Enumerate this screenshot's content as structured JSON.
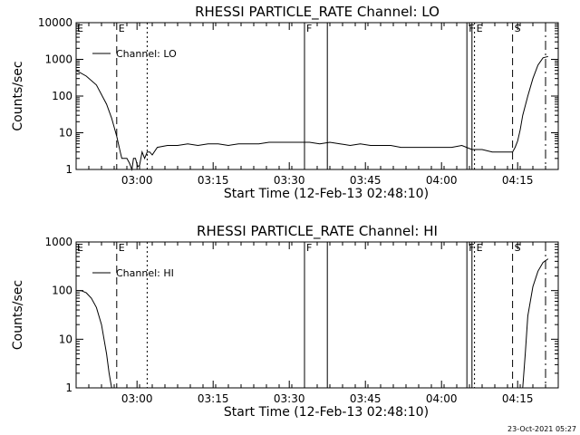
{
  "footer": "23-Oct-2021 05:27",
  "chart_data": [
    {
      "type": "line",
      "title": "RHESSI PARTICLE_RATE Channel: LO",
      "xlabel": "Start Time (12-Feb-13 02:48:10)",
      "ylabel": "Counts/sec",
      "yscale": "log",
      "ylim": [
        1,
        10000
      ],
      "xlim": [
        0,
        95
      ],
      "yticks": [
        {
          "v": 1,
          "label": "1"
        },
        {
          "v": 10,
          "label": "10"
        },
        {
          "v": 100,
          "label": "100"
        },
        {
          "v": 1000,
          "label": "1000"
        },
        {
          "v": 10000,
          "label": "10000"
        }
      ],
      "xticks": [
        {
          "t": 12,
          "label": "03:00"
        },
        {
          "t": 27,
          "label": "03:15"
        },
        {
          "t": 42,
          "label": "03:30"
        },
        {
          "t": 57,
          "label": "03:45"
        },
        {
          "t": 72,
          "label": "04:00"
        },
        {
          "t": 87,
          "label": "04:15"
        }
      ],
      "legend": "Channel: LO",
      "series": [
        {
          "name": "Channel: LO",
          "x": [
            0,
            2,
            4,
            6,
            7,
            8,
            8.7,
            9,
            9.3,
            10,
            10.5,
            11,
            11.3,
            11.7,
            12.1,
            12.5,
            13,
            13.5,
            14,
            14.5,
            15,
            16,
            18,
            20,
            22,
            24,
            26,
            28,
            30,
            32,
            34,
            36,
            38,
            40,
            42,
            44,
            46,
            48,
            50,
            52,
            54,
            56,
            58,
            60,
            62,
            64,
            66,
            68,
            70,
            72,
            74,
            76,
            78,
            80,
            82,
            84,
            85,
            86,
            86.5,
            87,
            87.5,
            88,
            89,
            90,
            91,
            92,
            93
          ],
          "y": [
            500,
            350,
            200,
            60,
            25,
            8,
            3,
            2,
            2,
            2,
            1.5,
            1,
            2,
            2,
            1.2,
            1.3,
            3,
            2,
            3,
            3,
            2.5,
            4,
            4.5,
            4.5,
            5,
            4.5,
            5,
            5,
            4.5,
            5,
            5,
            5,
            5.5,
            5.5,
            5.5,
            5.5,
            5.5,
            5,
            5.5,
            5,
            4.5,
            5,
            4.5,
            4.5,
            4.5,
            4,
            4,
            4,
            4,
            4,
            4,
            4.5,
            3.5,
            3.5,
            3,
            3,
            3,
            3,
            4,
            6,
            12,
            30,
            100,
            300,
            700,
            1100,
            1200
          ]
        }
      ],
      "markers": [
        {
          "t": 8,
          "style": "dashed",
          "label": "E"
        },
        {
          "t": 14,
          "style": "dotted",
          "label": ""
        },
        {
          "t": 45,
          "style": "solid",
          "label": "F"
        },
        {
          "t": 49.5,
          "style": "solid",
          "label": ""
        },
        {
          "t": 77,
          "style": "solid",
          "label": "F"
        },
        {
          "t": 78,
          "style": "solid",
          "label": ""
        },
        {
          "t": 78.5,
          "style": "dotted",
          "label": "E"
        },
        {
          "t": 86,
          "style": "dashed",
          "label": "S"
        },
        {
          "t": 92.5,
          "style": "dashdot",
          "label": ""
        }
      ],
      "corner_label": "E"
    },
    {
      "type": "line",
      "title": "RHESSI PARTICLE_RATE Channel: HI",
      "xlabel": "Start Time (12-Feb-13 02:48:10)",
      "ylabel": "Counts/sec",
      "yscale": "log",
      "ylim": [
        1,
        1000
      ],
      "xlim": [
        0,
        95
      ],
      "yticks": [
        {
          "v": 1,
          "label": "1"
        },
        {
          "v": 10,
          "label": "10"
        },
        {
          "v": 100,
          "label": "100"
        },
        {
          "v": 1000,
          "label": "1000"
        }
      ],
      "xticks": [
        {
          "t": 12,
          "label": "03:00"
        },
        {
          "t": 27,
          "label": "03:15"
        },
        {
          "t": 42,
          "label": "03:30"
        },
        {
          "t": 57,
          "label": "03:45"
        },
        {
          "t": 72,
          "label": "04:00"
        },
        {
          "t": 87,
          "label": "04:15"
        }
      ],
      "legend": "Channel: HI",
      "series": [
        {
          "name": "Channel: HI",
          "x": [
            0,
            1,
            2,
            3,
            4,
            5,
            6,
            6.5,
            7
          ],
          "y": [
            100,
            100,
            90,
            70,
            45,
            20,
            5,
            2,
            1
          ]
        },
        {
          "name": "Channel: HI",
          "x": [
            88,
            88.5,
            89,
            90,
            91,
            92,
            93
          ],
          "y": [
            1,
            5,
            30,
            120,
            250,
            380,
            450
          ]
        }
      ],
      "markers": [
        {
          "t": 8,
          "style": "dashed",
          "label": "E"
        },
        {
          "t": 14,
          "style": "dotted",
          "label": ""
        },
        {
          "t": 45,
          "style": "solid",
          "label": "F"
        },
        {
          "t": 49.5,
          "style": "solid",
          "label": ""
        },
        {
          "t": 77,
          "style": "solid",
          "label": "F"
        },
        {
          "t": 78,
          "style": "solid",
          "label": ""
        },
        {
          "t": 78.5,
          "style": "dotted",
          "label": "E"
        },
        {
          "t": 86,
          "style": "dashed",
          "label": "S"
        },
        {
          "t": 92.5,
          "style": "dashdot",
          "label": ""
        }
      ],
      "corner_label": "E"
    }
  ]
}
